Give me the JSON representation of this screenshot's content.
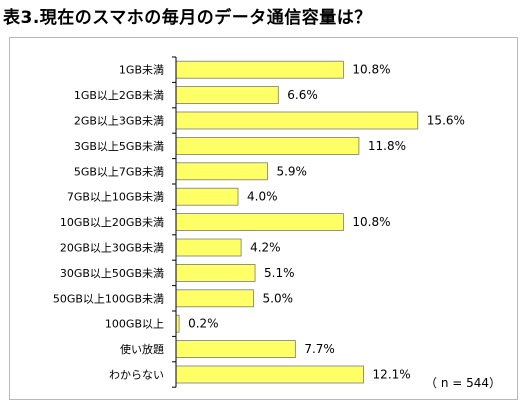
{
  "title": "表3.現在のスマホの毎月のデータ通信容量は？",
  "note": "（ n = 544）",
  "colors": {
    "bar_fill": "#ffff66",
    "bar_stroke": "#7a7a7a",
    "axis": "#000000"
  },
  "chart_data": {
    "type": "bar",
    "orientation": "horizontal",
    "value_suffix": "%",
    "categories": [
      "1GB未満",
      "1GB以上2GB未満",
      "2GB以上3GB未満",
      "3GB以上5GB未満",
      "5GB以上7GB未満",
      "7GB以上10GB未満",
      "10GB以上20GB未満",
      "20GB以上30GB未満",
      "30GB以上50GB未満",
      "50GB以上100GB未満",
      "100GB以上",
      "使い放題",
      "わからない"
    ],
    "values": [
      10.8,
      6.6,
      15.6,
      11.8,
      5.9,
      4.0,
      10.8,
      4.2,
      5.1,
      5.0,
      0.2,
      7.7,
      12.1
    ],
    "value_labels": [
      "10.8%",
      "6.6%",
      "15.6%",
      "11.8%",
      "5.9%",
      "4.0%",
      "10.8%",
      "4.2%",
      "5.1%",
      "5.0%",
      "0.2%",
      "7.7%",
      "12.1%"
    ],
    "grid": false,
    "legend": "none"
  }
}
